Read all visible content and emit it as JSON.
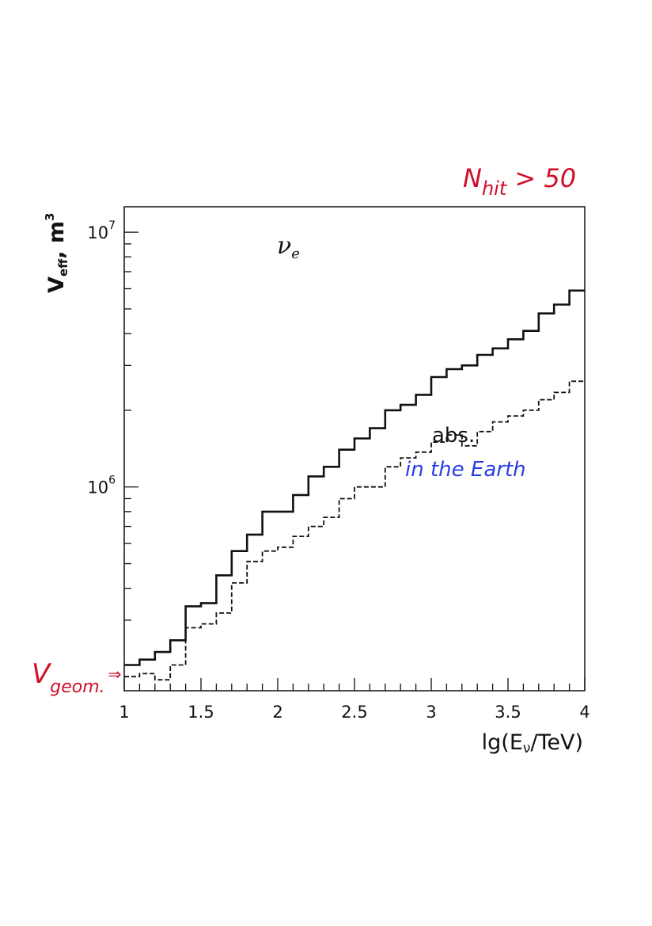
{
  "chart_data": {
    "type": "line",
    "step": true,
    "log_y": true,
    "xlim": [
      1,
      4
    ],
    "ylim_exponent": [
      5.2,
      7.1
    ],
    "xlabel": {
      "prefix": "lg(E",
      "sub": "ν",
      "suffix": "/TeV)"
    },
    "ylabel": {
      "main": "V",
      "sub": "eff",
      "unit": ", m",
      "unit_sup": "3"
    },
    "x_ticks": [
      "1",
      "1.5",
      "2",
      "2.5",
      "3",
      "3.5",
      "4"
    ],
    "x_tick_values": [
      1,
      1.5,
      2,
      2.5,
      3,
      3.5,
      4
    ],
    "y_ticks": [
      {
        "base": "10",
        "exp": "7",
        "value": 7
      },
      {
        "base": "10",
        "exp": "6",
        "value": 6
      }
    ],
    "bin_edges": [
      1.0,
      1.1,
      1.2,
      1.3,
      1.4,
      1.5,
      1.6,
      1.7,
      1.8,
      1.9,
      2.0,
      2.1,
      2.2,
      2.3,
      2.4,
      2.5,
      2.6,
      2.7,
      2.8,
      2.9,
      3.0,
      3.1,
      3.2,
      3.3,
      3.4,
      3.5,
      3.6,
      3.7,
      3.8,
      3.9,
      4.0
    ],
    "series": [
      {
        "style": "solid",
        "values": [
          200000,
          210000,
          225000,
          250000,
          340000,
          350000,
          450000,
          560000,
          650000,
          800000,
          800000,
          930000,
          1100000,
          1200000,
          1400000,
          1550000,
          1700000,
          2000000,
          2100000,
          2300000,
          2700000,
          2900000,
          3000000,
          3300000,
          3500000,
          3800000,
          4100000,
          4800000,
          5200000,
          5900000
        ]
      },
      {
        "style": "dashed",
        "values": [
          180000,
          185000,
          175000,
          200000,
          280000,
          290000,
          320000,
          420000,
          510000,
          560000,
          580000,
          640000,
          700000,
          760000,
          900000,
          1000000,
          1000000,
          1200000,
          1300000,
          1370000,
          1500000,
          1600000,
          1450000,
          1650000,
          1800000,
          1900000,
          2000000,
          2200000,
          2350000,
          2600000
        ]
      }
    ]
  },
  "annotations": {
    "nu": "ν",
    "nu_sub": "e",
    "abs": "abs.",
    "earth": "in the Earth",
    "nhit_main": "N",
    "nhit_sub": "hit",
    "nhit_rest": " > 50",
    "vgeom_main": "V",
    "vgeom_sub": "geom.",
    "vgeom_arrow": "⇒"
  },
  "colors": {
    "annotation_red": "#d0102a",
    "annotation_blue": "#2a3fe0",
    "line": "#111111"
  }
}
